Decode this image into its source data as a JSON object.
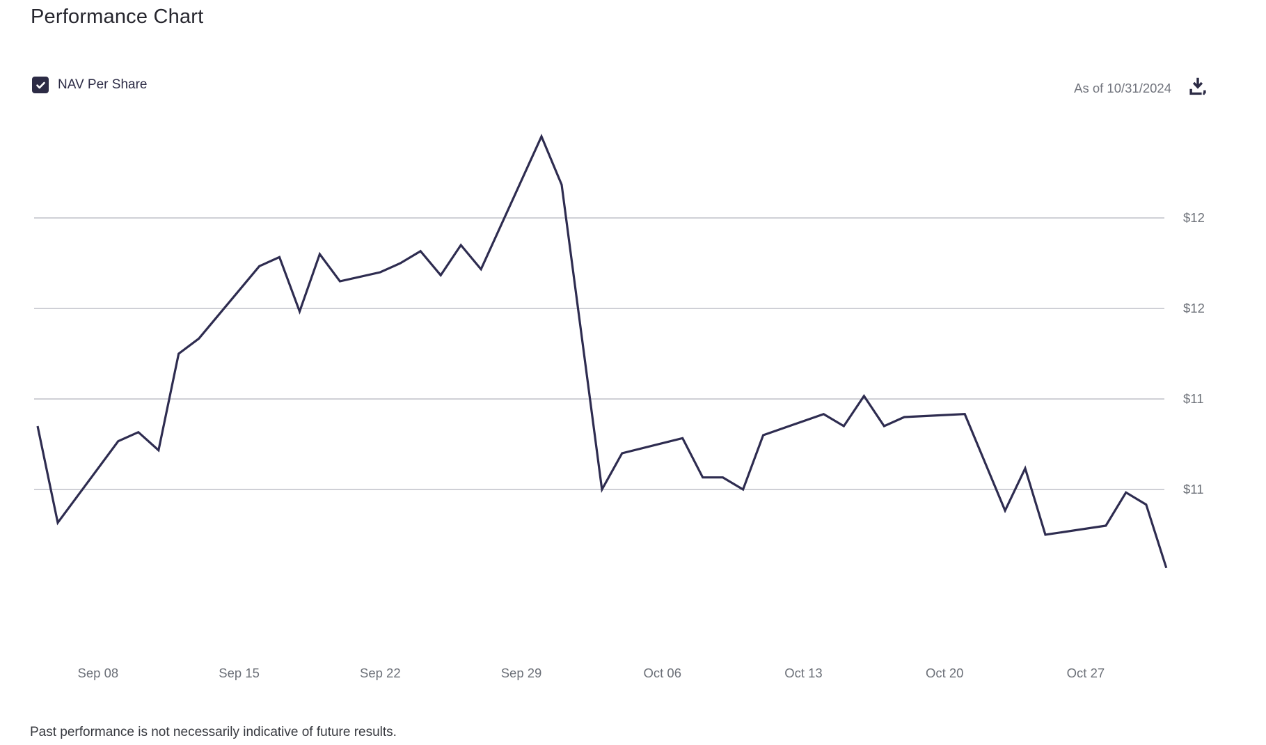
{
  "header": {
    "title": "Performance Chart"
  },
  "legend": {
    "nav_label": "NAV Per Share",
    "checkbox_checked": true
  },
  "meta": {
    "as_of": "As of 10/31/2024"
  },
  "icons": {
    "download": "download-icon (arrow into tray)",
    "check": "check-icon (white checkmark in filled square)"
  },
  "colors": {
    "line": "#2e2c50",
    "checkbox": "#2c2b45",
    "gridline": "#bfc1c9",
    "title_text": "#26262e",
    "axis_text": "#6c7078",
    "muted_text": "#71747d",
    "footer_text": "#36383e"
  },
  "footer": {
    "disclaimer": "Past performance is not necessarily indicative of future results."
  },
  "chart_data": {
    "type": "line",
    "title": "Performance Chart",
    "legend_position": "top-left",
    "grid": "horizontal-only",
    "ylim": [
      10.75,
      12.35
    ],
    "xlabel": "",
    "ylabel": "NAV Per Share ($)",
    "y_ticks": [
      {
        "label": "$12",
        "value": 12.0
      },
      {
        "label": "$12",
        "value": 11.7
      },
      {
        "label": "$11",
        "value": 11.4
      },
      {
        "label": "$11",
        "value": 11.1
      }
    ],
    "x_ticks": [
      {
        "label": "Sep 08",
        "day": 3
      },
      {
        "label": "Sep 15",
        "day": 10
      },
      {
        "label": "Sep 22",
        "day": 17
      },
      {
        "label": "Sep 29",
        "day": 24
      },
      {
        "label": "Oct 06",
        "day": 31
      },
      {
        "label": "Oct 13",
        "day": 38
      },
      {
        "label": "Oct 20",
        "day": 45
      },
      {
        "label": "Oct 27",
        "day": 52
      }
    ],
    "series": [
      {
        "name": "NAV Per Share",
        "points": [
          {
            "d": 0,
            "date": "09/05",
            "value": 11.31
          },
          {
            "d": 1,
            "date": "09/06",
            "value": 10.99
          },
          {
            "d": 4,
            "date": "09/09",
            "value": 11.26
          },
          {
            "d": 5,
            "date": "09/10",
            "value": 11.29
          },
          {
            "d": 6,
            "date": "09/11",
            "value": 11.23
          },
          {
            "d": 7,
            "date": "09/12",
            "value": 11.55
          },
          {
            "d": 8,
            "date": "09/13",
            "value": 11.6
          },
          {
            "d": 11,
            "date": "09/16",
            "value": 11.84
          },
          {
            "d": 12,
            "date": "09/17",
            "value": 11.87
          },
          {
            "d": 13,
            "date": "09/18",
            "value": 11.69
          },
          {
            "d": 14,
            "date": "09/19",
            "value": 11.88
          },
          {
            "d": 15,
            "date": "09/20",
            "value": 11.79
          },
          {
            "d": 17,
            "date": "09/22",
            "value": 11.82
          },
          {
            "d": 18,
            "date": "09/23",
            "value": 11.85
          },
          {
            "d": 19,
            "date": "09/24",
            "value": 11.89
          },
          {
            "d": 20,
            "date": "09/25",
            "value": 11.81
          },
          {
            "d": 21,
            "date": "09/26",
            "value": 11.91
          },
          {
            "d": 22,
            "date": "09/27",
            "value": 11.83
          },
          {
            "d": 25,
            "date": "09/30",
            "value": 12.27
          },
          {
            "d": 26,
            "date": "10/01",
            "value": 12.11
          },
          {
            "d": 28,
            "date": "10/03",
            "value": 11.1
          },
          {
            "d": 29,
            "date": "10/04",
            "value": 11.22
          },
          {
            "d": 32,
            "date": "10/07",
            "value": 11.27
          },
          {
            "d": 33,
            "date": "10/08",
            "value": 11.14
          },
          {
            "d": 34,
            "date": "10/09",
            "value": 11.14
          },
          {
            "d": 35,
            "date": "10/10",
            "value": 11.1
          },
          {
            "d": 36,
            "date": "10/11",
            "value": 11.28
          },
          {
            "d": 39,
            "date": "10/14",
            "value": 11.35
          },
          {
            "d": 40,
            "date": "10/15",
            "value": 11.31
          },
          {
            "d": 41,
            "date": "10/16",
            "value": 11.41
          },
          {
            "d": 42,
            "date": "10/17",
            "value": 11.31
          },
          {
            "d": 43,
            "date": "10/18",
            "value": 11.34
          },
          {
            "d": 46,
            "date": "10/21",
            "value": 11.35
          },
          {
            "d": 48,
            "date": "10/23",
            "value": 11.03
          },
          {
            "d": 49,
            "date": "10/24",
            "value": 11.17
          },
          {
            "d": 50,
            "date": "10/25",
            "value": 10.95
          },
          {
            "d": 53,
            "date": "10/28",
            "value": 10.98
          },
          {
            "d": 54,
            "date": "10/29",
            "value": 11.09
          },
          {
            "d": 55,
            "date": "10/30",
            "value": 11.05
          },
          {
            "d": 56,
            "date": "10/31",
            "value": 10.84
          }
        ]
      }
    ]
  }
}
